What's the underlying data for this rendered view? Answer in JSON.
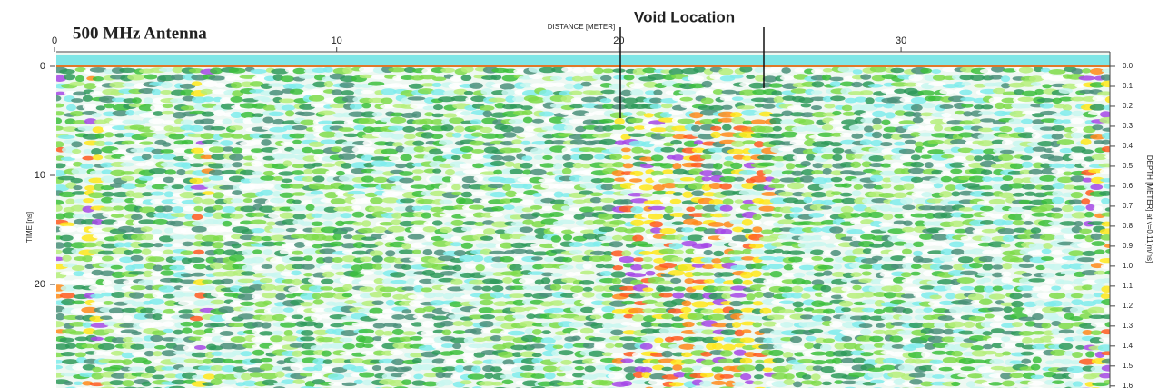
{
  "chart_data": {
    "type": "image",
    "title": "500 MHz Antenna",
    "annotation": "Void Location",
    "x_label": "DISTANCE [METER]",
    "y_label": "TIME [ns]",
    "y2_label": "DEPTH [METER] at v=0.11[m/ns]",
    "xlim": [
      0,
      37.4
    ],
    "xticks": [
      0,
      10,
      20,
      30
    ],
    "ylim": [
      0,
      29.5
    ],
    "yticks": [
      0,
      10,
      20
    ],
    "y2lim": [
      0,
      1.61
    ],
    "y2ticks": [
      {
        "value": 0,
        "label": "0.0"
      },
      0.1,
      0.2,
      0.3,
      0.4,
      0.5,
      0.6,
      0.7,
      0.8,
      0.9,
      {
        "value": 1,
        "label": "1.0"
      },
      1.1,
      1.2,
      1.3,
      1.4,
      1.5,
      1.6
    ]
  }
}
